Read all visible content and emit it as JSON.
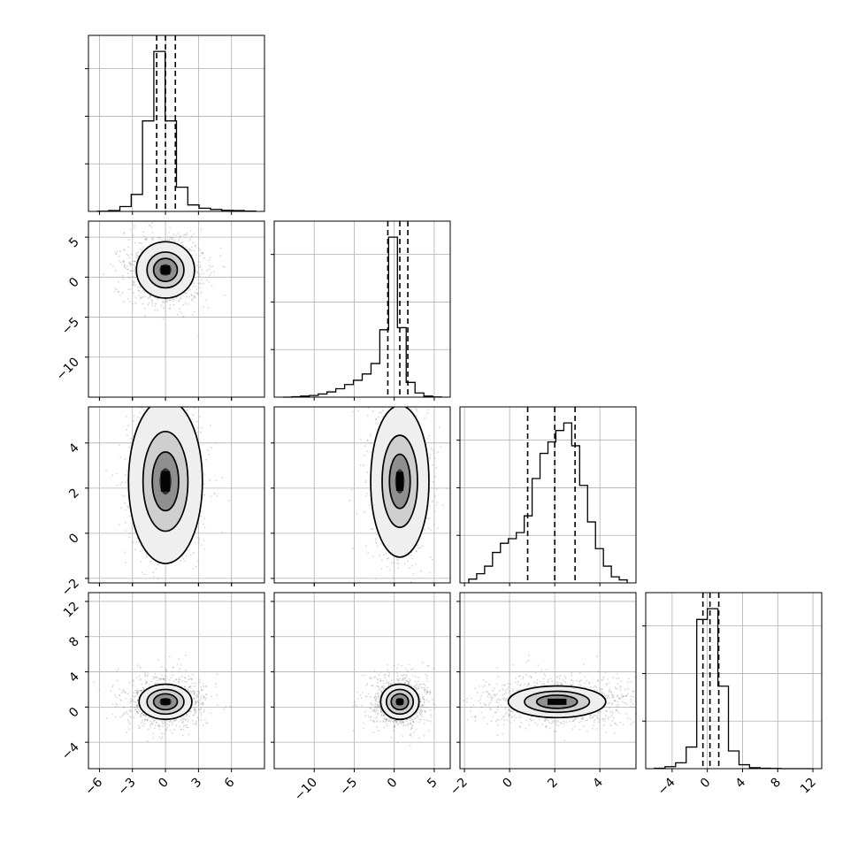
{
  "chart_data": {
    "type": "corner",
    "grid": true,
    "parameters": [
      {
        "name": "p0",
        "range": [
          -7,
          9
        ],
        "ticks": [
          -6,
          -3,
          0,
          3,
          6
        ],
        "hist_counts": [
          1,
          5,
          30,
          105,
          560,
          990,
          560,
          150,
          40,
          20,
          12,
          7,
          5,
          2
        ],
        "quantiles": [
          -0.8,
          0.0,
          0.9
        ]
      },
      {
        "name": "p1",
        "range": [
          -15,
          7
        ],
        "ticks": [
          -10,
          -5,
          0,
          5
        ],
        "hist_counts": [
          0,
          2,
          5,
          8,
          15,
          25,
          40,
          60,
          80,
          110,
          160,
          320,
          760,
          330,
          70,
          20,
          5,
          1
        ],
        "quantiles": [
          -0.8,
          0.7,
          1.7
        ]
      },
      {
        "name": "p2",
        "range": [
          -2.2,
          5.6
        ],
        "ticks": [
          -2,
          0,
          2,
          4
        ],
        "hist_counts": [
          5,
          12,
          22,
          40,
          52,
          58,
          66,
          88,
          137,
          170,
          185,
          200,
          210,
          180,
          128,
          80,
          45,
          22,
          8,
          4
        ],
        "quantiles": [
          0.8,
          2.0,
          2.9
        ]
      },
      {
        "name": "p3",
        "range": [
          -7,
          13
        ],
        "ticks": [
          -4,
          0,
          4,
          8,
          12
        ],
        "hist_counts": [
          2,
          10,
          30,
          110,
          760,
          815,
          420,
          90,
          20,
          5,
          2,
          1,
          0,
          0,
          0
        ],
        "quantiles": [
          -0.5,
          0.3,
          1.3
        ]
      }
    ],
    "y_ticks": {
      "1": [
        -10,
        -5,
        0,
        5
      ],
      "2": [
        -2,
        0,
        2,
        4
      ],
      "3": [
        -4,
        0,
        4,
        8,
        12
      ]
    },
    "pairs": [
      {
        "row": 1,
        "col": 0,
        "center": [
          0,
          0.9
        ],
        "sigma": [
          1.2,
          1.6
        ],
        "contour_sigma": [
          0.45,
          0.9,
          1.4,
          2.2
        ]
      },
      {
        "row": 2,
        "col": 0,
        "center": [
          0,
          2.3
        ],
        "sigma": [
          1.2,
          1.3
        ],
        "contour_sigma": [
          0.45,
          1.0,
          1.7,
          2.8
        ]
      },
      {
        "row": 2,
        "col": 1,
        "center": [
          0.7,
          2.3
        ],
        "sigma": [
          1.3,
          1.2
        ],
        "contour_sigma": [
          0.45,
          1.0,
          1.7,
          2.8
        ]
      },
      {
        "row": 3,
        "col": 0,
        "center": [
          0,
          0.6
        ],
        "sigma": [
          1.2,
          1.0
        ],
        "contour_sigma": [
          0.45,
          0.9,
          1.4,
          2.0
        ]
      },
      {
        "row": 3,
        "col": 1,
        "center": [
          0.7,
          0.6
        ],
        "sigma": [
          1.2,
          1.0
        ],
        "contour_sigma": [
          0.45,
          0.9,
          1.4,
          2.0
        ]
      },
      {
        "row": 3,
        "col": 2,
        "center": [
          2.1,
          0.6
        ],
        "sigma": [
          1.2,
          1.0
        ],
        "contour_sigma": [
          0.35,
          0.75,
          1.2,
          1.8
        ]
      }
    ]
  }
}
